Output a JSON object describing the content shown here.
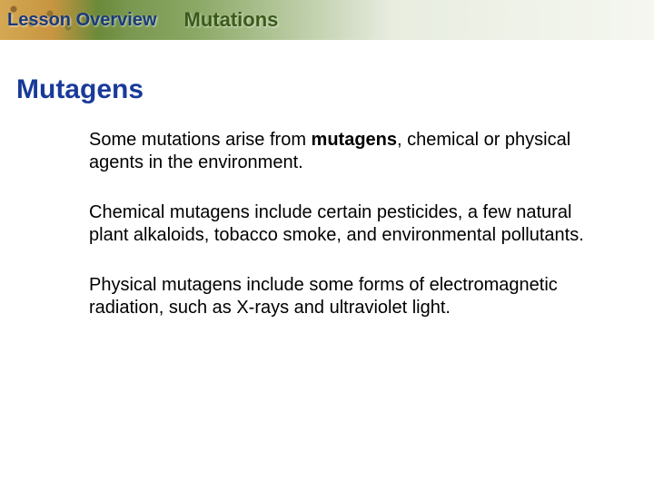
{
  "colors": {
    "lesson_overview_color": "#1a3a7a",
    "topic_title_color": "#3a5a1a",
    "section_title_color": "#1a3a9a",
    "body_text_color": "#000000"
  },
  "header": {
    "lesson_overview_label": "Lesson Overview",
    "topic_title": "Mutations"
  },
  "section": {
    "title": "Mutagens"
  },
  "paragraphs": {
    "p1_pre": "Some mutations arise from ",
    "p1_bold": "mutagens",
    "p1_post": ", chemical or physical agents in the environment.",
    "p2": "Chemical mutagens include certain pesticides, a few natural plant alkaloids, tobacco smoke, and environmental pollutants.",
    "p3": "Physical mutagens include some forms of electromagnetic radiation, such as X-rays and ultraviolet light."
  }
}
